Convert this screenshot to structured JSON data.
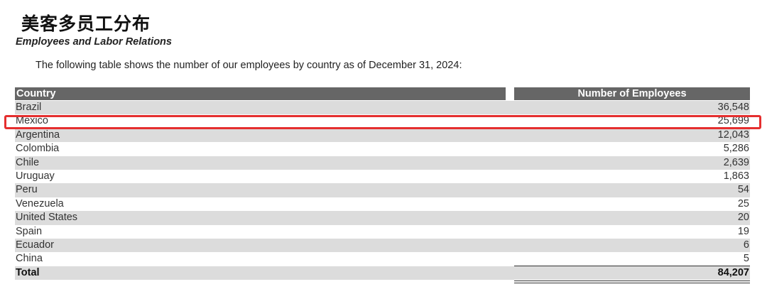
{
  "doc": {
    "title": "美客多员工分布",
    "subtitle": "Employees and Labor Relations",
    "intro": "The following table shows the number of our employees by country as of December 31, 2024:"
  },
  "table": {
    "headers": {
      "country": "Country",
      "employees": "Number of Employees"
    },
    "rows": [
      {
        "country": "Brazil",
        "employees": "36,548"
      },
      {
        "country": "Mexico",
        "employees": "25,699"
      },
      {
        "country": "Argentina",
        "employees": "12,043"
      },
      {
        "country": "Colombia",
        "employees": "5,286"
      },
      {
        "country": "Chile",
        "employees": "2,639"
      },
      {
        "country": "Uruguay",
        "employees": "1,863"
      },
      {
        "country": "Peru",
        "employees": "54"
      },
      {
        "country": "Venezuela",
        "employees": "25"
      },
      {
        "country": "United States",
        "employees": "20"
      },
      {
        "country": "Spain",
        "employees": "19"
      },
      {
        "country": "Ecuador",
        "employees": "6"
      },
      {
        "country": "China",
        "employees": "5"
      }
    ],
    "total": {
      "label": "Total",
      "employees": "84,207"
    }
  },
  "colors": {
    "header_bg": "#666666",
    "band_bg": "#dcdcdc",
    "highlight": "#e52f2f"
  }
}
